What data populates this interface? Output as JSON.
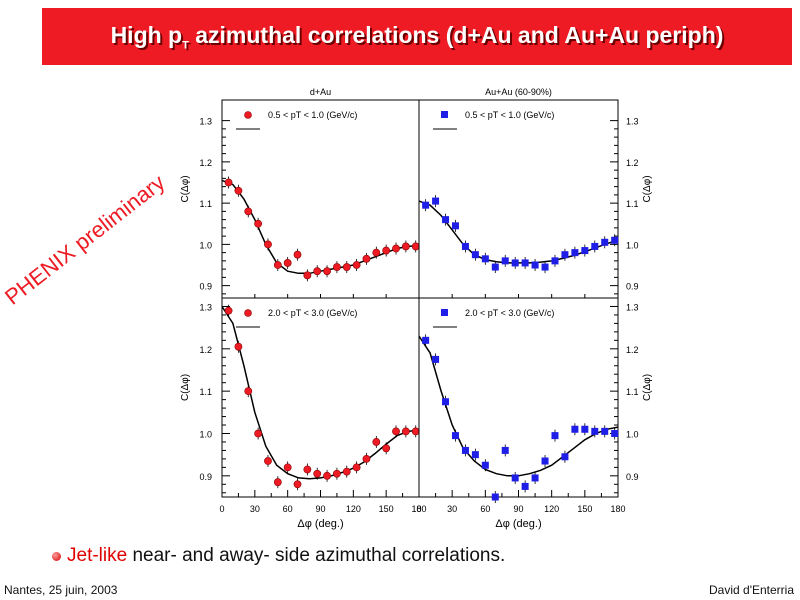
{
  "header": {
    "title_pre": "High p",
    "title_sub": "T",
    "title_post": " azimuthal correlations (d+Au and Au+Au periph)"
  },
  "watermark": "PHENIX preliminary",
  "bullet": {
    "highlight": "Jet-like",
    "text": " near- and away- side azimuthal correlations."
  },
  "footer": {
    "left": "Nantes, 25 juin, 2003",
    "right": "David d'Enterria"
  },
  "colors": {
    "title_bg": "#ee1b24",
    "dau_marker": "#ee1b24",
    "auau_marker": "#1e1ee6"
  },
  "chart_data": [
    {
      "type": "scatter",
      "panel": "top-left",
      "title": "d+Au",
      "legend": "0.5 < pT < 1.0 (GeV/c)",
      "ylabel": "C(Δφ)",
      "ylim": [
        0.87,
        1.35
      ],
      "xlim": [
        0,
        180
      ],
      "yticks": [
        "1.3",
        "1.2",
        "1.1",
        "1.0",
        "0.9"
      ],
      "marker": "circle",
      "series": [
        {
          "x": [
            6,
            15,
            24,
            33,
            42,
            51,
            60,
            69,
            78,
            87,
            96,
            105,
            114,
            123,
            132,
            141,
            150,
            159,
            168,
            177
          ],
          "y": [
            1.15,
            1.13,
            1.08,
            1.05,
            1.0,
            0.95,
            0.955,
            0.975,
            0.925,
            0.935,
            0.935,
            0.945,
            0.945,
            0.95,
            0.965,
            0.98,
            0.985,
            0.99,
            0.995,
            0.995
          ]
        }
      ],
      "fit": {
        "x": [
          0,
          10,
          20,
          30,
          40,
          50,
          60,
          70,
          80,
          90,
          100,
          110,
          120,
          130,
          140,
          150,
          160,
          170,
          180
        ],
        "y": [
          1.155,
          1.145,
          1.11,
          1.06,
          1.0,
          0.955,
          0.935,
          0.93,
          0.93,
          0.935,
          0.94,
          0.945,
          0.95,
          0.96,
          0.97,
          0.98,
          0.99,
          0.995,
          0.997
        ]
      }
    },
    {
      "type": "scatter",
      "panel": "top-right",
      "title": "Au+Au (60-90%)",
      "legend": "0.5 < pT < 1.0 (GeV/c)",
      "ylabel": "C(Δφ)",
      "ylim": [
        0.87,
        1.35
      ],
      "xlim": [
        0,
        180
      ],
      "yticks": [
        "1.3",
        "1.2",
        "1.1",
        "1.0",
        "0.9"
      ],
      "marker": "square",
      "series": [
        {
          "x": [
            6,
            15,
            24,
            33,
            42,
            51,
            60,
            69,
            78,
            87,
            96,
            105,
            114,
            123,
            132,
            141,
            150,
            159,
            168,
            177
          ],
          "y": [
            1.095,
            1.105,
            1.06,
            1.045,
            0.995,
            0.975,
            0.965,
            0.945,
            0.96,
            0.955,
            0.955,
            0.95,
            0.945,
            0.96,
            0.975,
            0.98,
            0.985,
            0.995,
            1.005,
            1.01
          ]
        }
      ],
      "fit": {
        "x": [
          0,
          10,
          20,
          30,
          40,
          50,
          60,
          70,
          80,
          90,
          100,
          110,
          120,
          130,
          140,
          150,
          160,
          170,
          180
        ],
        "y": [
          1.105,
          1.095,
          1.07,
          1.035,
          1.0,
          0.975,
          0.963,
          0.958,
          0.955,
          0.955,
          0.955,
          0.957,
          0.96,
          0.966,
          0.973,
          0.982,
          0.992,
          1.002,
          1.01
        ]
      }
    },
    {
      "type": "scatter",
      "panel": "bottom-left",
      "legend": "2.0 < pT < 3.0 (GeV/c)",
      "ylabel": "C(Δφ)",
      "xlabel": "Δφ (deg.)",
      "ylim": [
        0.85,
        1.32
      ],
      "xlim": [
        0,
        180
      ],
      "xticks": [
        "0",
        "30",
        "60",
        "90",
        "120",
        "150",
        "180"
      ],
      "yticks": [
        "1.3",
        "1.2",
        "1.1",
        "1.0",
        "0.9"
      ],
      "marker": "circle",
      "series": [
        {
          "x": [
            6,
            15,
            24,
            33,
            42,
            51,
            60,
            69,
            78,
            87,
            96,
            105,
            114,
            123,
            132,
            141,
            150,
            159,
            168,
            177
          ],
          "y": [
            1.29,
            1.205,
            1.1,
            1.0,
            0.935,
            0.885,
            0.92,
            0.88,
            0.915,
            0.905,
            0.9,
            0.905,
            0.91,
            0.92,
            0.94,
            0.98,
            0.965,
            1.005,
            1.005,
            1.005
          ]
        }
      ],
      "fit": {
        "x": [
          0,
          10,
          20,
          30,
          40,
          50,
          60,
          70,
          80,
          90,
          100,
          110,
          120,
          130,
          140,
          150,
          160,
          170,
          180
        ],
        "y": [
          1.3,
          1.26,
          1.16,
          1.05,
          0.97,
          0.925,
          0.905,
          0.895,
          0.893,
          0.895,
          0.9,
          0.908,
          0.918,
          0.933,
          0.953,
          0.975,
          0.995,
          1.005,
          1.008
        ]
      }
    },
    {
      "type": "scatter",
      "panel": "bottom-right",
      "legend": "2.0 < pT < 3.0 (GeV/c)",
      "ylabel": "C(Δφ)",
      "xlabel": "Δφ (deg.)",
      "ylim": [
        0.85,
        1.32
      ],
      "xlim": [
        0,
        180
      ],
      "xticks": [
        "0",
        "30",
        "60",
        "90",
        "120",
        "150",
        "180"
      ],
      "yticks": [
        "1.3",
        "1.2",
        "1.1",
        "1.0",
        "0.9"
      ],
      "marker": "square",
      "series": [
        {
          "x": [
            6,
            15,
            24,
            33,
            42,
            51,
            60,
            69,
            78,
            87,
            96,
            105,
            114,
            123,
            132,
            141,
            150,
            159,
            168,
            177
          ],
          "y": [
            1.22,
            1.175,
            1.075,
            0.995,
            0.96,
            0.95,
            0.925,
            0.85,
            0.96,
            0.895,
            0.875,
            0.895,
            0.935,
            0.995,
            0.945,
            1.01,
            1.01,
            1.005,
            1.005,
            1.0
          ]
        }
      ],
      "fit": {
        "x": [
          0,
          10,
          20,
          30,
          40,
          50,
          60,
          70,
          80,
          90,
          100,
          110,
          120,
          130,
          140,
          150,
          160,
          170,
          180
        ],
        "y": [
          1.23,
          1.19,
          1.1,
          1.02,
          0.965,
          0.935,
          0.915,
          0.905,
          0.9,
          0.9,
          0.905,
          0.913,
          0.925,
          0.945,
          0.965,
          0.985,
          1.0,
          1.01,
          1.015
        ]
      }
    }
  ]
}
